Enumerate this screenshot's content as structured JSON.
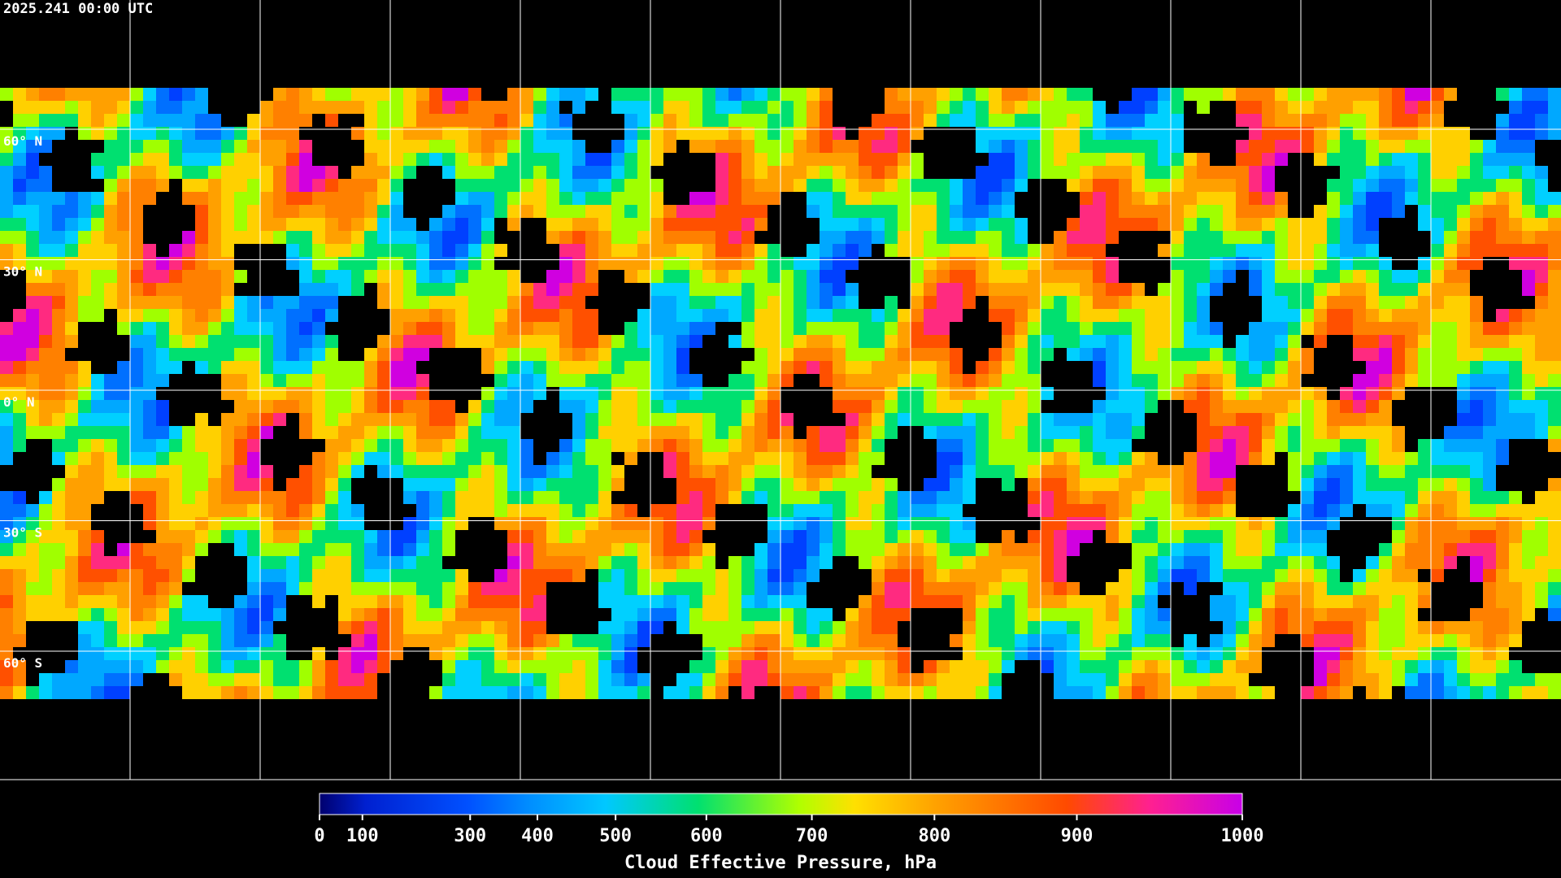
{
  "header": {
    "timestamp": "2025.241 00:00 UTC"
  },
  "map": {
    "latitude_labels": [
      "60° N",
      "30° N",
      "0° N",
      "30° S",
      "60° S"
    ]
  },
  "colorbar": {
    "title": "Cloud Effective Pressure, hPa",
    "range": [
      0,
      1000
    ],
    "ticks": [
      0,
      100,
      300,
      400,
      500,
      600,
      700,
      800,
      900,
      1000
    ],
    "scale": "exponential"
  }
}
